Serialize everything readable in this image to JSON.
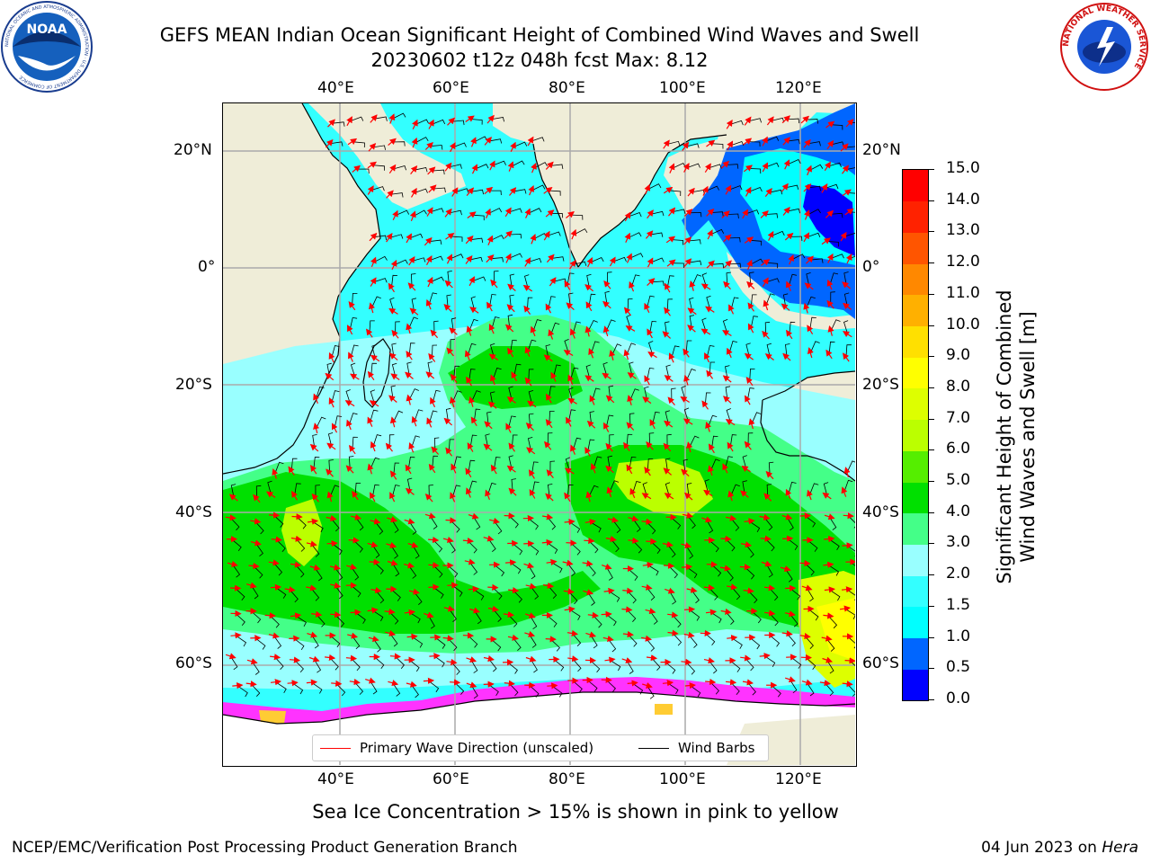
{
  "header": {
    "title_line1": "GEFS MEAN Indian Ocean Significant Height of Combined Wind Waves and Swell",
    "title_line2": "20230602 t12z 048h fcst   Max: 8.12",
    "noaa_logo_text": "NOAA",
    "noaa_ring_text": "NATIONAL OCEANIC AND ATMOSPHERIC ADMINISTRATION · U.S. DEPARTMENT OF COMMERCE",
    "nws_ring_text": "NATIONAL WEATHER SERVICE"
  },
  "map": {
    "lon_labels": [
      "40°E",
      "60°E",
      "80°E",
      "100°E",
      "120°E"
    ],
    "lat_labels": [
      "20°N",
      "0°",
      "20°S",
      "40°S",
      "60°S"
    ],
    "colors": {
      "land": "#efedd8",
      "ice_pink": "#ff33ff",
      "ice_yellow": "#ffcc33",
      "arrow": "#ff0000",
      "barb": "#000000"
    }
  },
  "colorbar": {
    "ticks": [
      "0.0",
      "0.5",
      "1.0",
      "1.5",
      "2.0",
      "3.0",
      "4.0",
      "5.0",
      "6.0",
      "7.0",
      "8.0",
      "9.0",
      "10.0",
      "11.0",
      "12.0",
      "13.0",
      "14.0",
      "15.0"
    ],
    "colors": [
      "#0000ff",
      "#0066ff",
      "#00ffff",
      "#33ffff",
      "#99ffff",
      "#44ff88",
      "#00e000",
      "#55ee00",
      "#bbff00",
      "#ddff00",
      "#ffff00",
      "#ffe000",
      "#ffb000",
      "#ff8800",
      "#ff5500",
      "#ff2200",
      "#ff0000"
    ],
    "label_line1": "Significant Height of Combined",
    "label_line2": "Wind Waves and Swell [m]"
  },
  "legend": {
    "wave_label": "Primary Wave Direction (unscaled)",
    "barb_label": "Wind Barbs"
  },
  "footer": {
    "ice_note": "Sea Ice Concentration > 15% is shown in pink to yellow",
    "credit": "NCEP/EMC/Verification Post Processing Product Generation Branch",
    "date": "04 Jun 2023 on",
    "machine": "Hera"
  }
}
